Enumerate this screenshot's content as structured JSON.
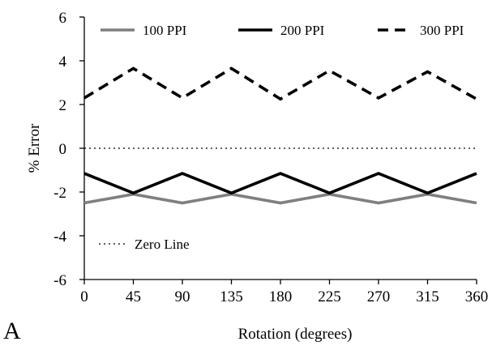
{
  "panel_label": "A",
  "chart_data": {
    "type": "line",
    "title": "",
    "xlabel": "Rotation (degrees)",
    "ylabel": "% Error",
    "x": [
      0,
      45,
      90,
      135,
      180,
      225,
      270,
      315,
      360
    ],
    "xticks": [
      "0",
      "45",
      "90",
      "135",
      "180",
      "225",
      "270",
      "315",
      "360"
    ],
    "yticks": [
      "6",
      "4",
      "2",
      "0",
      "-2",
      "-4",
      "-6"
    ],
    "xlim": [
      0,
      360
    ],
    "ylim": [
      -6,
      6
    ],
    "grid": false,
    "legend_position": "top",
    "series": [
      {
        "name": "100 PPI",
        "color": "#7f7f7f",
        "dash": "solid",
        "values": [
          -2.5,
          -2.1,
          -2.5,
          -2.1,
          -2.5,
          -2.1,
          -2.5,
          -2.1,
          -2.5
        ]
      },
      {
        "name": "200 PPI",
        "color": "#000000",
        "dash": "solid",
        "values": [
          -1.15,
          -2.05,
          -1.15,
          -2.05,
          -1.15,
          -2.05,
          -1.15,
          -2.05,
          -1.15
        ]
      },
      {
        "name": "300 PPI",
        "color": "#000000",
        "dash": "dashed",
        "values": [
          2.3,
          3.65,
          2.3,
          3.65,
          2.25,
          3.55,
          2.3,
          3.5,
          2.25
        ]
      }
    ],
    "reference_line": {
      "name": "Zero Line",
      "y": 0,
      "color": "#000000",
      "dash": "dotted"
    }
  }
}
